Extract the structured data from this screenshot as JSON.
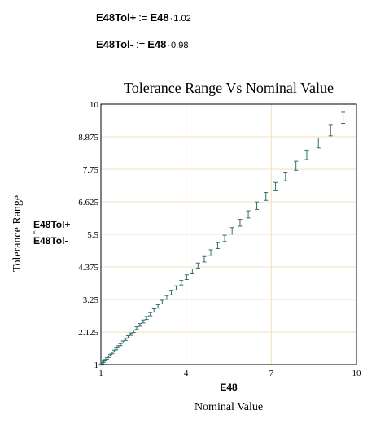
{
  "definitions": [
    {
      "name": "E48Tol+",
      "operator": ":=",
      "base": "E48",
      "factor": "1.02"
    },
    {
      "name": "E48Tol-",
      "operator": ":=",
      "base": "E48",
      "factor": "0.98"
    }
  ],
  "plot": {
    "title": "Tolerance Range Vs Nominal Value",
    "y_axis_title": "Tolerance Range",
    "x_axis_title": "Nominal Value",
    "x_axis_expression": "E48",
    "legend": [
      "E48Tol+",
      "E48Tol-"
    ],
    "x_ticks": [
      "1",
      "4",
      "7",
      "10"
    ],
    "y_ticks": [
      "1",
      "2.125",
      "3.25",
      "4.375",
      "5.5",
      "6.625",
      "7.75",
      "8.875",
      "10"
    ]
  },
  "chart_data": {
    "type": "scatter",
    "title": "Tolerance Range Vs Nominal Value",
    "xlabel": "Nominal Value",
    "ylabel": "Tolerance Range",
    "xlim": [
      1,
      10
    ],
    "ylim": [
      1,
      10
    ],
    "grid": true,
    "marker_color": "#2e6f6a",
    "grid_color": "#f2dfbf",
    "series": [
      {
        "name": "E48Tol+",
        "factor": 1.02
      },
      {
        "name": "E48Tol-",
        "factor": 0.98
      }
    ],
    "x": [
      1.0,
      1.05,
      1.1,
      1.15,
      1.21,
      1.27,
      1.33,
      1.4,
      1.47,
      1.54,
      1.62,
      1.69,
      1.78,
      1.87,
      1.96,
      2.05,
      2.15,
      2.26,
      2.37,
      2.49,
      2.61,
      2.74,
      2.87,
      3.01,
      3.16,
      3.32,
      3.48,
      3.65,
      3.83,
      4.02,
      4.22,
      4.42,
      4.64,
      4.87,
      5.11,
      5.36,
      5.62,
      5.9,
      6.19,
      6.49,
      6.81,
      7.15,
      7.5,
      7.87,
      8.25,
      8.66,
      9.09,
      9.53
    ]
  }
}
